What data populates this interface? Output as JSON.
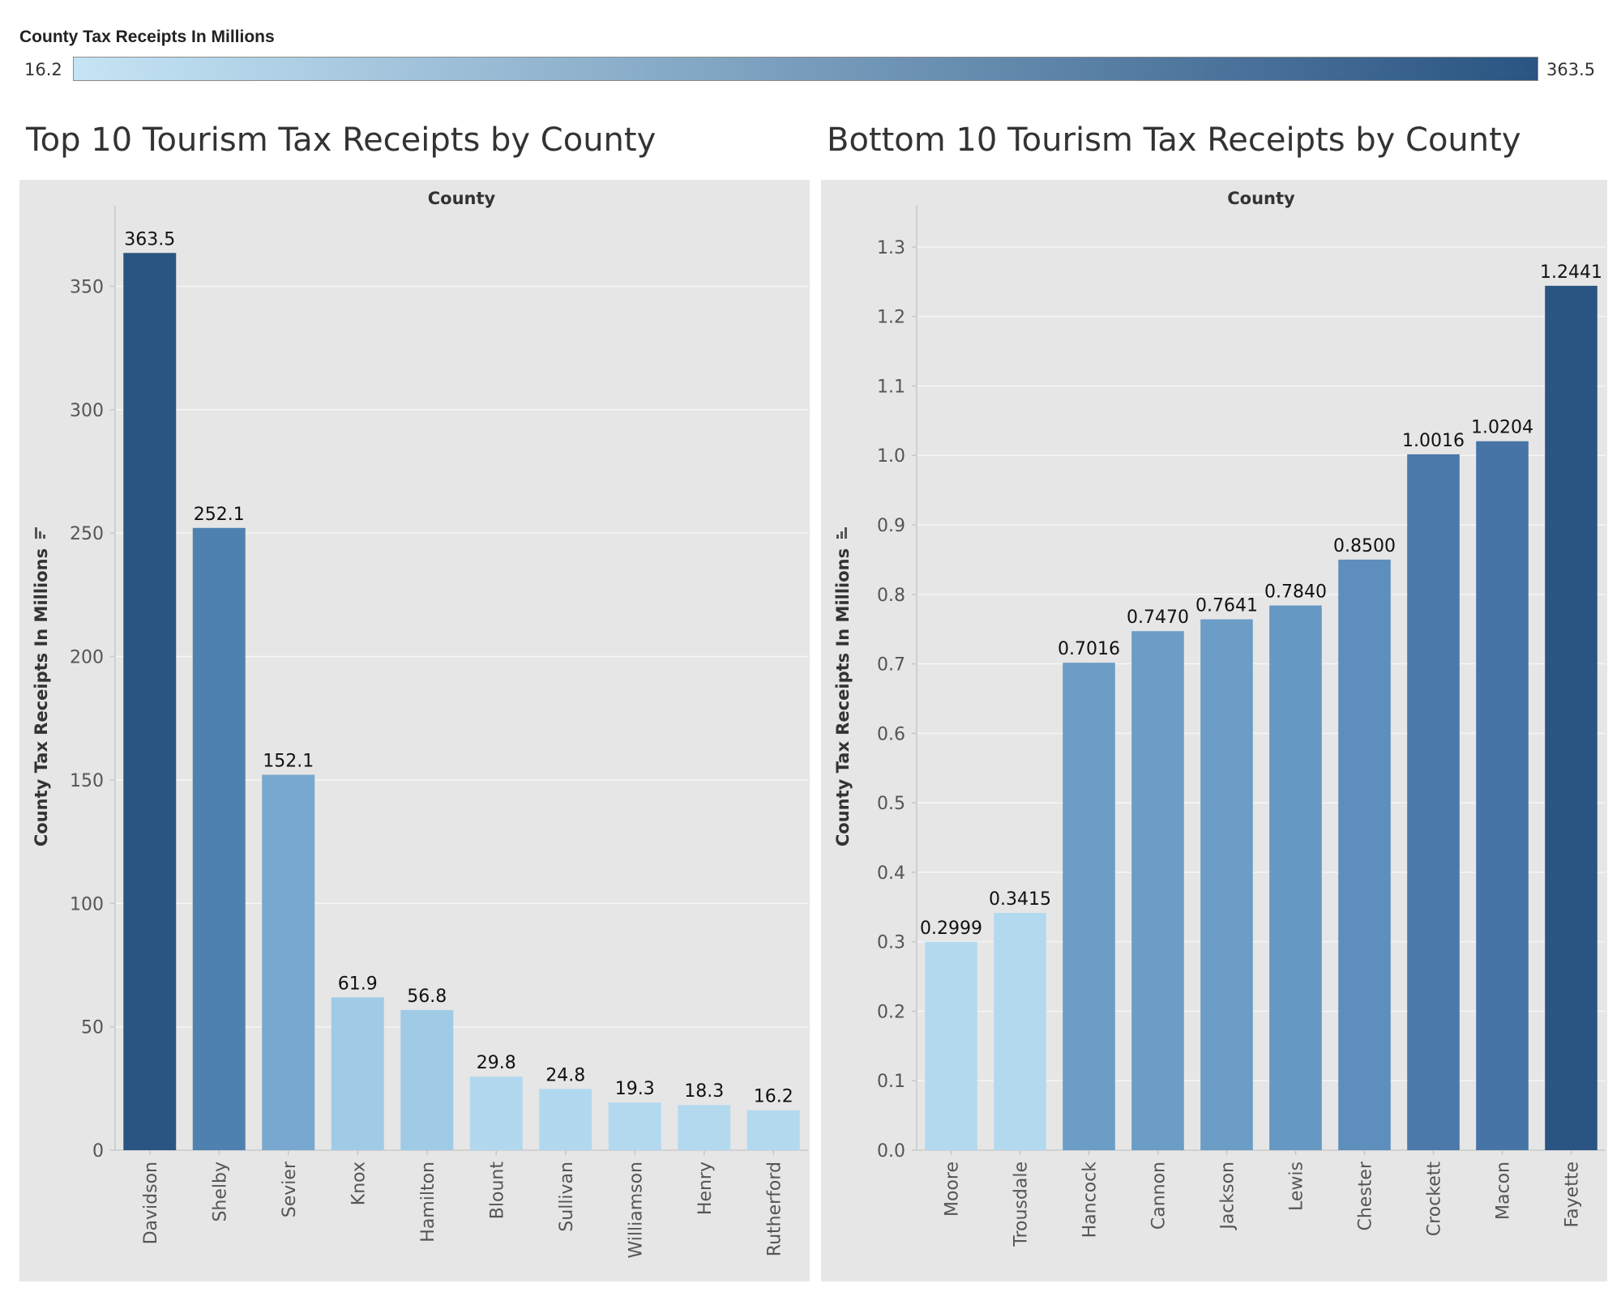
{
  "legend": {
    "title": "County Tax Receipts In Millions",
    "min_label": "16.2",
    "max_label": "363.5",
    "color_low": "#c5e4f5",
    "color_high": "#2a5482"
  },
  "chart_data": [
    {
      "type": "bar",
      "title": "Top 10 Tourism Tax Receipts by County",
      "header": "County",
      "ylabel": "County Tax Receipts In Millions",
      "ylim": [
        0,
        380
      ],
      "yticks": [
        0,
        50,
        100,
        150,
        200,
        250,
        300,
        350
      ],
      "tick_decimals": 0,
      "label_decimals": 1,
      "grid": true,
      "categories": [
        "Davidson",
        "Shelby",
        "Sevier",
        "Knox",
        "Hamilton",
        "Blount",
        "Sullivan",
        "Williamson",
        "Henry",
        "Rutherford"
      ],
      "values": [
        363.5,
        252.1,
        152.1,
        61.9,
        56.8,
        29.8,
        24.8,
        19.3,
        18.3,
        16.2
      ],
      "colors": [
        "#2a5582",
        "#4f81b0",
        "#78a8cf",
        "#a0cbe7",
        "#a0cbe7",
        "#b1d8ef",
        "#b1d8ef",
        "#b3d9ef",
        "#b3d9ef",
        "#b3d9ef"
      ]
    },
    {
      "type": "bar",
      "title": "Bottom 10 Tourism Tax Receipts by County",
      "header": "County",
      "ylabel": "County Tax Receipts In Millions",
      "ylim": [
        0,
        1.35
      ],
      "yticks": [
        0.0,
        0.1,
        0.2,
        0.3,
        0.4,
        0.5,
        0.6,
        0.7,
        0.8,
        0.9,
        1.0,
        1.1,
        1.2,
        1.3
      ],
      "tick_decimals": 1,
      "label_decimals": 4,
      "grid": true,
      "categories": [
        "Moore",
        "Trousdale",
        "Hancock",
        "Cannon",
        "Jackson",
        "Lewis",
        "Chester",
        "Crockett",
        "Macon",
        "Fayette"
      ],
      "values": [
        0.2999,
        0.3415,
        0.7016,
        0.747,
        0.7641,
        0.784,
        0.85,
        1.0016,
        1.0204,
        1.2441
      ],
      "colors": [
        "#b3d9ef",
        "#b3d9ef",
        "#6b9dc6",
        "#6b9dc6",
        "#6b9dc6",
        "#6598c2",
        "#5e8fbc",
        "#4a79aa",
        "#4774a6",
        "#2a5582"
      ]
    }
  ]
}
